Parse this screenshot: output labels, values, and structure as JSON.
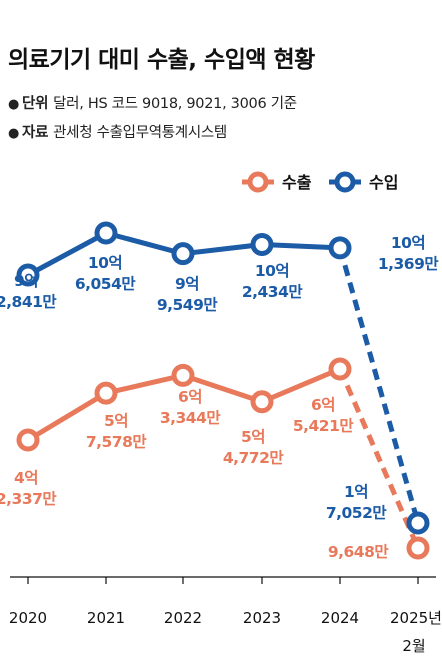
{
  "header": {
    "title": "의료기기 대미 수출, 수입액 현황",
    "unit_key": "단위",
    "unit_text": "달러, HS 코드 9018, 9021, 3006 기준",
    "source_key": "자료",
    "source_text": "관세청 수출입무역통계시스템",
    "bullet": "●"
  },
  "colors": {
    "export": "#e8795a",
    "import": "#1c5ba6"
  },
  "chart_data": {
    "type": "line",
    "categories": [
      "2020",
      "2021",
      "2022",
      "2023",
      "2024",
      "2025년 2월"
    ],
    "series": [
      {
        "name": "수출",
        "values": [
          423370000,
          575780000,
          633440000,
          547720000,
          654210000,
          96480000
        ],
        "labels": [
          [
            "4억",
            "2,337만"
          ],
          [
            "5억",
            "7,578만"
          ],
          [
            "6억",
            "3,344만"
          ],
          [
            "5억",
            "4,772만"
          ],
          [
            "6억",
            "5,421만"
          ],
          [
            "9,648만"
          ]
        ],
        "dashed_last_segment": true
      },
      {
        "name": "수입",
        "values": [
          928410000,
          1060540000,
          995490000,
          1024340000,
          1013690000,
          170520000
        ],
        "labels": [
          [
            "9억",
            "2,841만"
          ],
          [
            "10억",
            "6,054만"
          ],
          [
            "9억",
            "9,549만"
          ],
          [
            "10억",
            "2,434만"
          ],
          [
            "10억",
            "1,369만"
          ],
          [
            "1억",
            "7,052만"
          ]
        ],
        "dashed_last_segment": true
      }
    ],
    "legend_position": "top-right",
    "grid": false
  }
}
